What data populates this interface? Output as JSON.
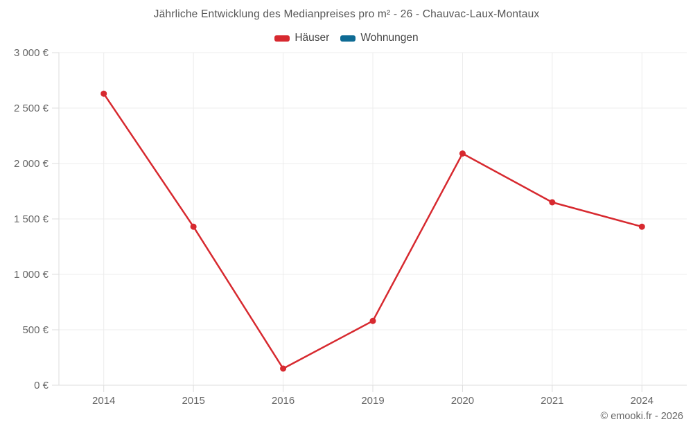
{
  "title": "Jährliche Entwicklung des Medianpreises pro m² - 26 - Chauvac-Laux-Montaux",
  "legend": [
    {
      "label": "Häuser",
      "color": "#d7292f"
    },
    {
      "label": "Wohnungen",
      "color": "#0e6b94"
    }
  ],
  "footer": "© emooki.fr - 2026",
  "colors": {
    "grid": "#ececec",
    "axis": "#dddddd",
    "tick_text": "#666666"
  },
  "chart_data": {
    "type": "line",
    "title": "Jährliche Entwicklung des Medianpreises pro m² - 26 - Chauvac-Laux-Montaux",
    "categories": [
      "2014",
      "2015",
      "2016",
      "2019",
      "2020",
      "2021",
      "2024"
    ],
    "series": [
      {
        "name": "Häuser",
        "color": "#d7292f",
        "values": [
          2630,
          1430,
          150,
          580,
          2090,
          1650,
          1430
        ]
      },
      {
        "name": "Wohnungen",
        "color": "#0e6b94",
        "values": []
      }
    ],
    "xlabel": "",
    "ylabel": "",
    "ylim": [
      0,
      3000
    ],
    "ytick_step": 500,
    "yticks": [
      {
        "value": 3000,
        "label": "3 000 €"
      },
      {
        "value": 2500,
        "label": "2 500 €"
      },
      {
        "value": 2000,
        "label": "2 000 €"
      },
      {
        "value": 1500,
        "label": "1 500 €"
      },
      {
        "value": 1000,
        "label": "1 000 €"
      },
      {
        "value": 500,
        "label": "500 €"
      },
      {
        "value": 0,
        "label": "0 €"
      }
    ],
    "grid": true,
    "legend_position": "top"
  }
}
